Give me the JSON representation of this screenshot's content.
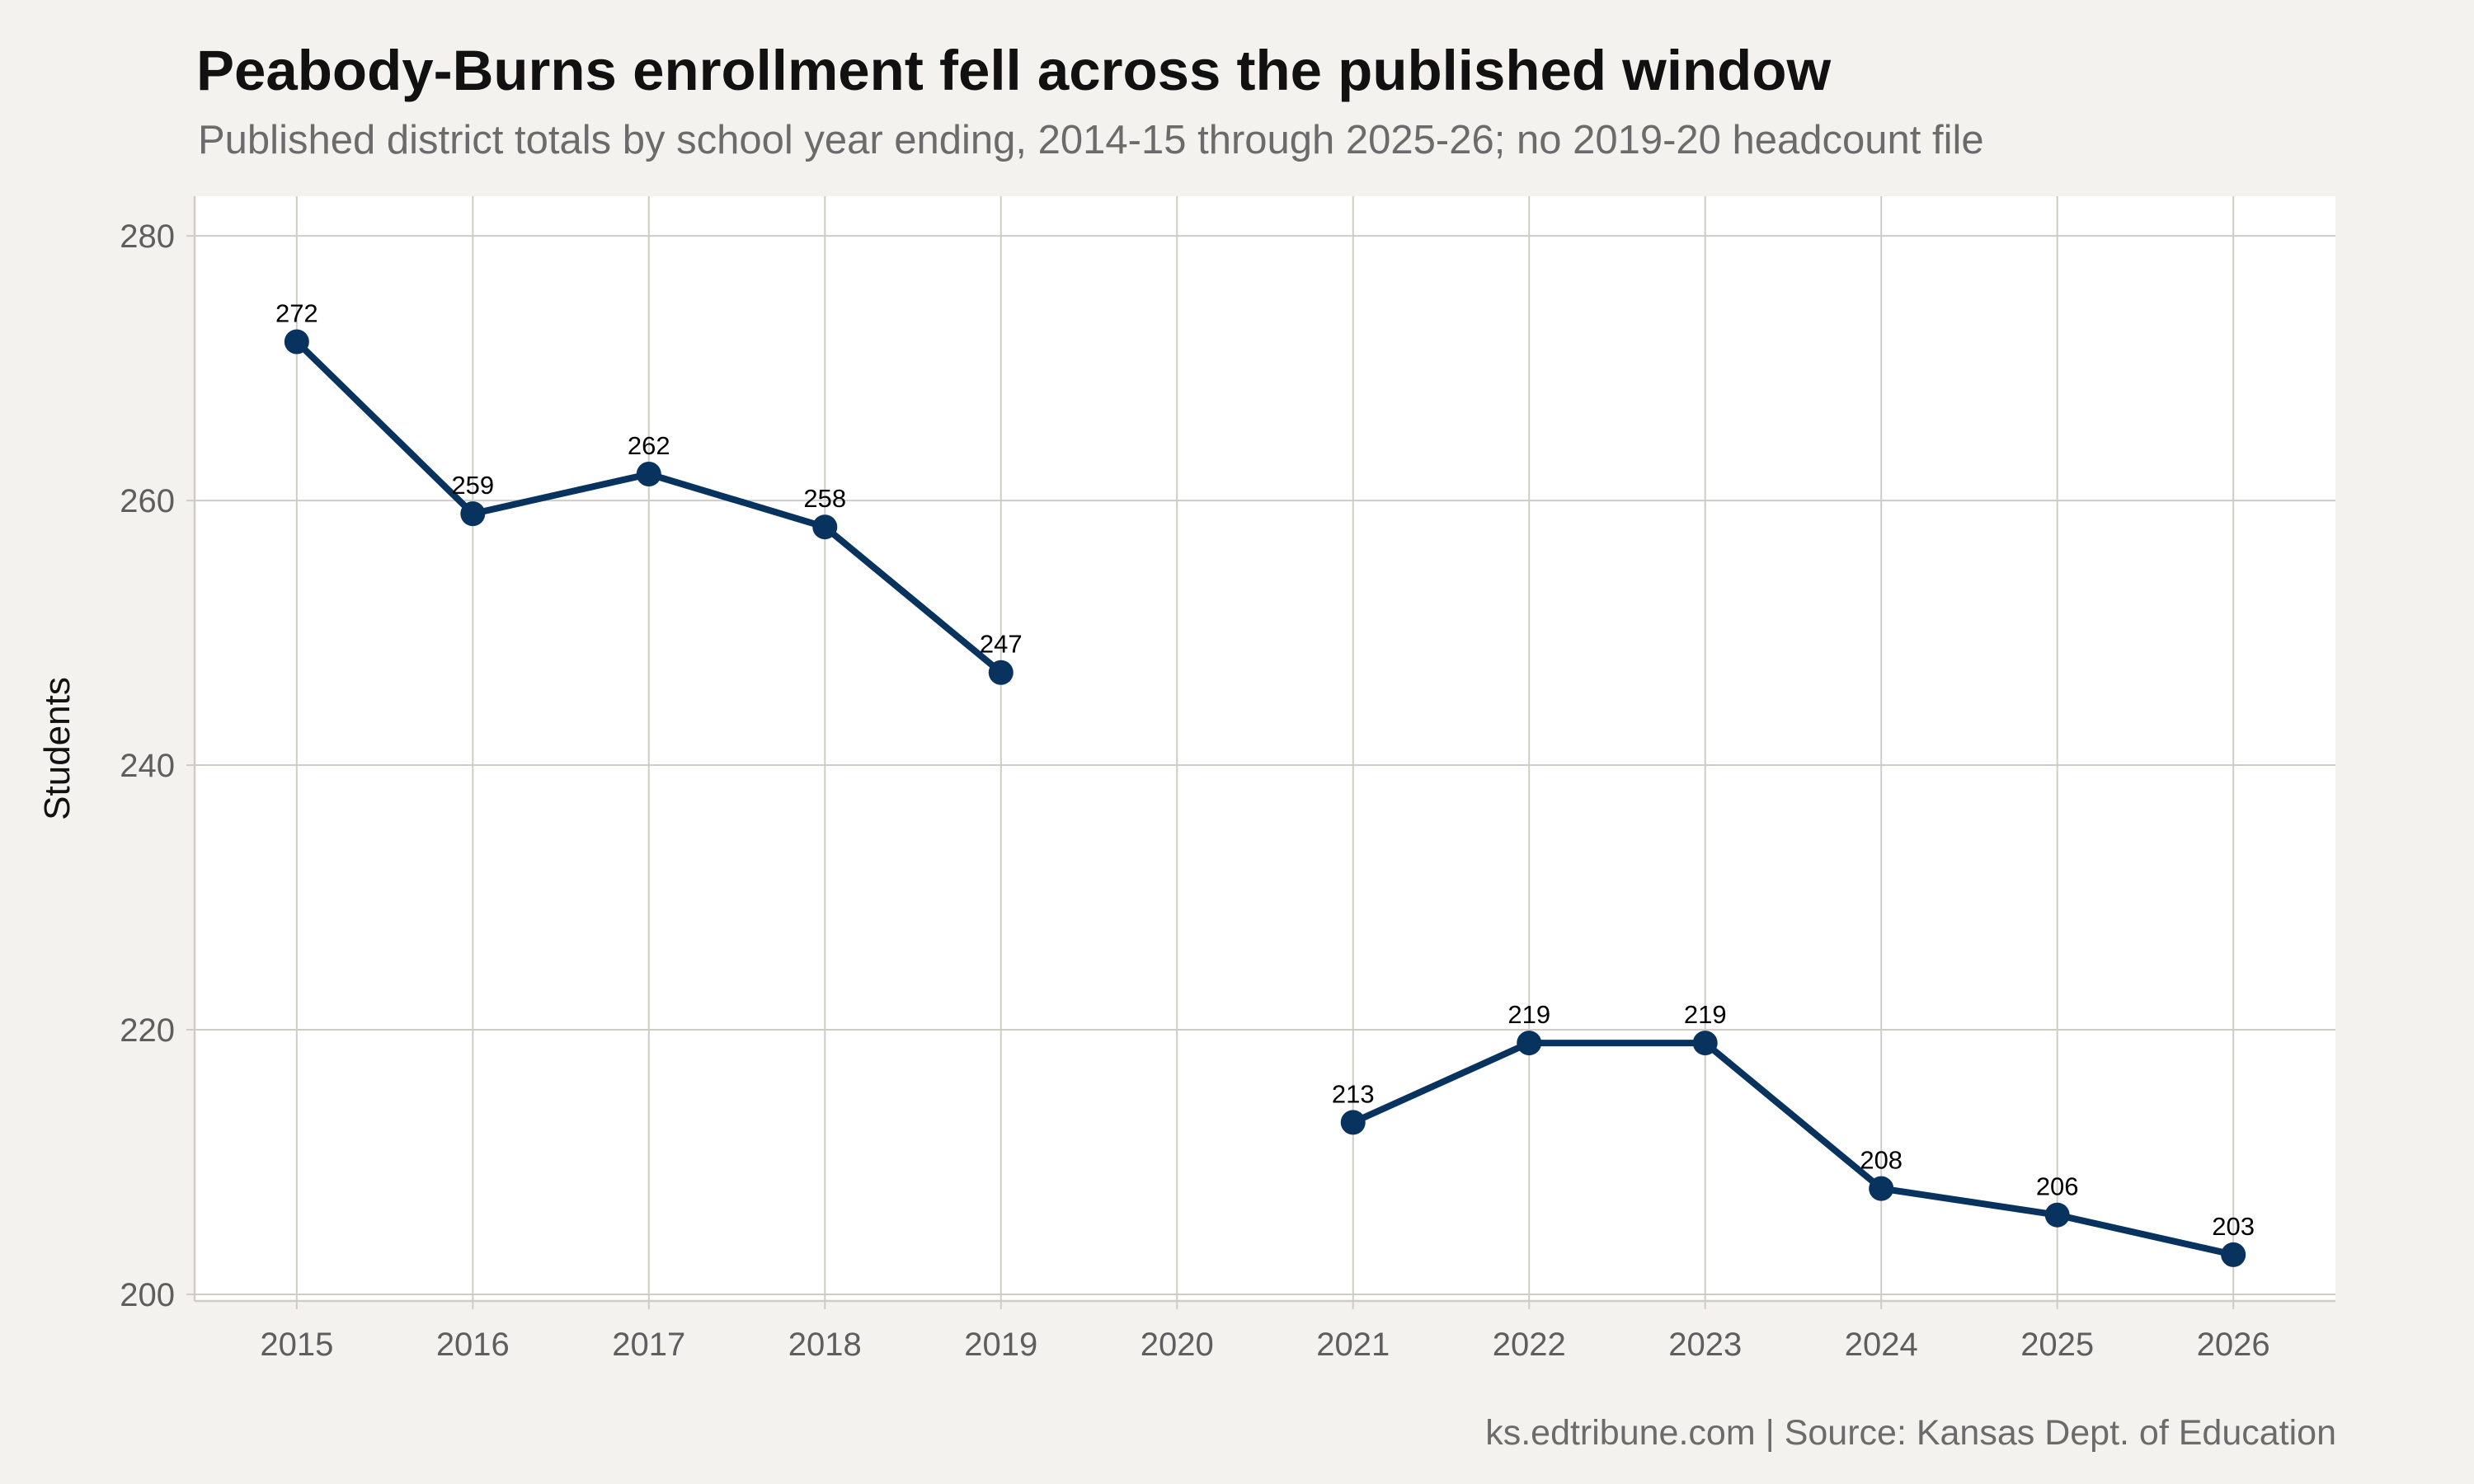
{
  "title": "Peabody-Burns enrollment fell across the published window",
  "subtitle": "Published district totals by school year ending, 2014-15 through 2025-26; no 2019-20 headcount file",
  "caption": "ks.edtribune.com | Source: Kansas Dept. of Education",
  "chart_data": {
    "type": "line",
    "ylabel": "Students",
    "xlabel": "",
    "x": [
      2015,
      2016,
      2017,
      2018,
      2019,
      2020,
      2021,
      2022,
      2023,
      2024,
      2025,
      2026
    ],
    "x_tick_labels": [
      "2015",
      "2016",
      "2017",
      "2018",
      "2019",
      "2020",
      "2021",
      "2022",
      "2023",
      "2024",
      "2025",
      "2026"
    ],
    "series": [
      {
        "values": [
          272,
          259,
          262,
          258,
          247,
          null,
          213,
          219,
          219,
          208,
          206,
          203
        ],
        "data_labels": [
          "272",
          "259",
          "262",
          "258",
          "247",
          null,
          "213",
          "219",
          "219",
          "208",
          "206",
          "203"
        ],
        "color": "#08335f"
      }
    ],
    "ylim": [
      199.5,
      283
    ],
    "xlim": [
      2014.42,
      2026.58
    ],
    "y_ticks": [
      200,
      220,
      240,
      260,
      280
    ],
    "y_tick_labels": [
      "200",
      "220",
      "240",
      "260",
      "280"
    ],
    "grid": true,
    "legend": "none"
  },
  "colors": {
    "background": "#f4f2ee",
    "panel": "#ffffff",
    "grid": "#cfccc6",
    "line": "#08335f",
    "title": "#111111",
    "muted": "#6b6b6b"
  }
}
